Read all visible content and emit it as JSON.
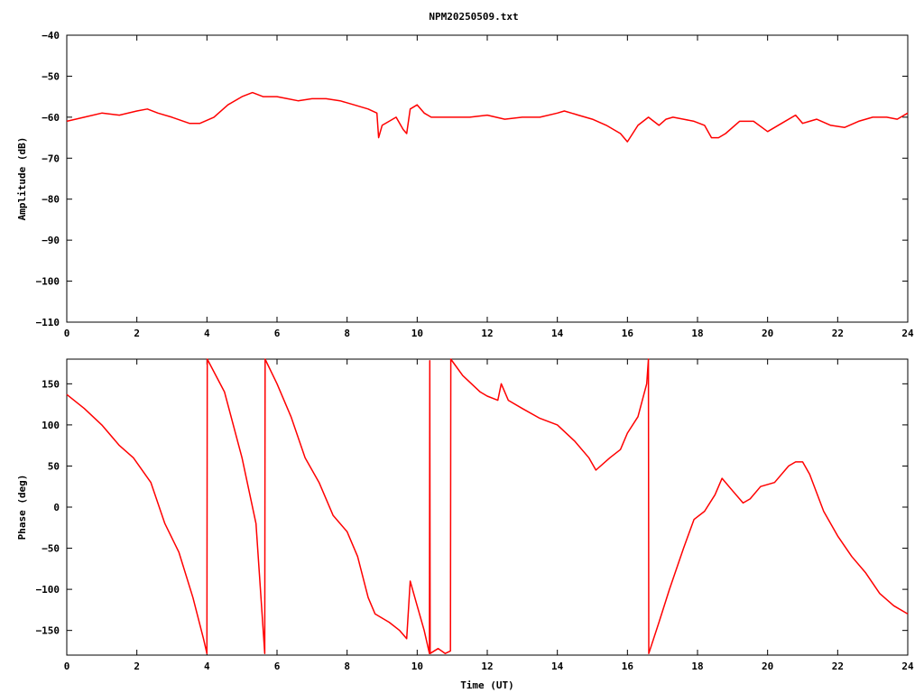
{
  "title": "NPM20250509.txt",
  "colors": {
    "series": "#ff0000",
    "axis": "#000000",
    "background": "#ffffff"
  },
  "chart_data": [
    {
      "type": "line",
      "title": "NPM20250509.txt",
      "xlabel": "",
      "ylabel": "Amplitude (dB)",
      "xlim": [
        0,
        24
      ],
      "ylim": [
        -110,
        -40
      ],
      "xticks": [
        "0",
        "2",
        "4",
        "6",
        "8",
        "10",
        "12",
        "14",
        "16",
        "18",
        "20",
        "22",
        "24"
      ],
      "yticks": [
        "-40",
        "-50",
        "-60",
        "-70",
        "-80",
        "-90",
        "-100",
        "-110"
      ],
      "grid": false,
      "series": [
        {
          "x": [
            0,
            0.5,
            1,
            1.5,
            2,
            2.3,
            2.6,
            3,
            3.5,
            3.8,
            4.2,
            4.6,
            5,
            5.3,
            5.6,
            6,
            6.3,
            6.6,
            7,
            7.4,
            7.8,
            8.2,
            8.6,
            8.85,
            8.9,
            9.0,
            9.2,
            9.4,
            9.6,
            9.7,
            9.8,
            10,
            10.2,
            10.4,
            10.6,
            11,
            11.5,
            12,
            12.5,
            13,
            13.5,
            14,
            14.2,
            14.6,
            15,
            15.4,
            15.8,
            16,
            16.3,
            16.6,
            16.9,
            17.1,
            17.3,
            17.6,
            17.9,
            18.2,
            18.4,
            18.6,
            18.8,
            19.2,
            19.6,
            20,
            20.4,
            20.8,
            21,
            21.2,
            21.4,
            21.8,
            22.2,
            22.6,
            23,
            23.4,
            23.7,
            24
          ],
          "values": [
            -61,
            -60,
            -59,
            -59.5,
            -58.5,
            -58,
            -59,
            -60,
            -61.5,
            -61.5,
            -60,
            -57,
            -55,
            -54,
            -55,
            -55,
            -55.5,
            -56,
            -55.5,
            -55.5,
            -56,
            -57,
            -58,
            -59,
            -65,
            -62,
            -61,
            -60,
            -63,
            -64,
            -58,
            -57,
            -59,
            -60,
            -60,
            -60,
            -60,
            -59.5,
            -60.5,
            -60,
            -60,
            -59,
            -58.5,
            -59.5,
            -60.5,
            -62,
            -64,
            -66,
            -62,
            -60,
            -62,
            -60.5,
            -60,
            -60.5,
            -61,
            -62,
            -65,
            -65,
            -64,
            -61,
            -61,
            -63.5,
            -61.5,
            -59.5,
            -61.5,
            -61,
            -60.5,
            -62,
            -62.5,
            -61,
            -60,
            -60,
            -60.5,
            -59
          ]
        }
      ]
    },
    {
      "type": "line",
      "title": "",
      "xlabel": "Time (UT)",
      "ylabel": "Phase (deg)",
      "xlim": [
        0,
        24
      ],
      "ylim": [
        -180,
        180
      ],
      "xticks": [
        "0",
        "2",
        "4",
        "6",
        "8",
        "10",
        "12",
        "14",
        "16",
        "18",
        "20",
        "22",
        "24"
      ],
      "yticks": [
        "150",
        "100",
        "50",
        "0",
        "-50",
        "-100",
        "-150"
      ],
      "grid": false,
      "series": [
        {
          "x": [
            0,
            0.5,
            1,
            1.5,
            1.9,
            2.1,
            2.4,
            2.8,
            3.2,
            3.6,
            3.9,
            4.0,
            4.01,
            4.5,
            5.0,
            5.4,
            5.65,
            5.66,
            6.0,
            6.4,
            6.8,
            7.2,
            7.6,
            8.0,
            8.3,
            8.6,
            8.8,
            9.2,
            9.5,
            9.7,
            9.8,
            10.0,
            10.2,
            10.35,
            10.36,
            10.37,
            10.6,
            10.8,
            10.95,
            10.96,
            11.3,
            11.8,
            12.0,
            12.3,
            12.4,
            12.6,
            13.0,
            13.5,
            14.0,
            14.5,
            14.9,
            15.1,
            15.5,
            15.8,
            16.0,
            16.3,
            16.55,
            16.6,
            16.61,
            16.9,
            17.2,
            17.6,
            17.9,
            18.2,
            18.5,
            18.7,
            19.0,
            19.3,
            19.5,
            19.8,
            20.2,
            20.6,
            20.8,
            21.0,
            21.2,
            21.6,
            22.0,
            22.4,
            22.8,
            23.2,
            23.6,
            24.0
          ],
          "values": [
            137,
            120,
            100,
            75,
            60,
            48,
            30,
            -20,
            -55,
            -110,
            -160,
            -178,
            180,
            140,
            60,
            -20,
            -178,
            180,
            150,
            110,
            60,
            30,
            -10,
            -30,
            -60,
            -110,
            -130,
            -140,
            -150,
            -160,
            -90,
            -120,
            -150,
            -178,
            178,
            -178,
            -172,
            -178,
            -175,
            180,
            160,
            140,
            135,
            130,
            150,
            130,
            120,
            108,
            100,
            80,
            60,
            45,
            60,
            70,
            90,
            110,
            150,
            180,
            -178,
            -140,
            -100,
            -50,
            -15,
            -5,
            15,
            35,
            20,
            5,
            10,
            25,
            30,
            50,
            55,
            55,
            40,
            -5,
            -35,
            -60,
            -80,
            -105,
            -120,
            -130
          ]
        }
      ]
    }
  ]
}
